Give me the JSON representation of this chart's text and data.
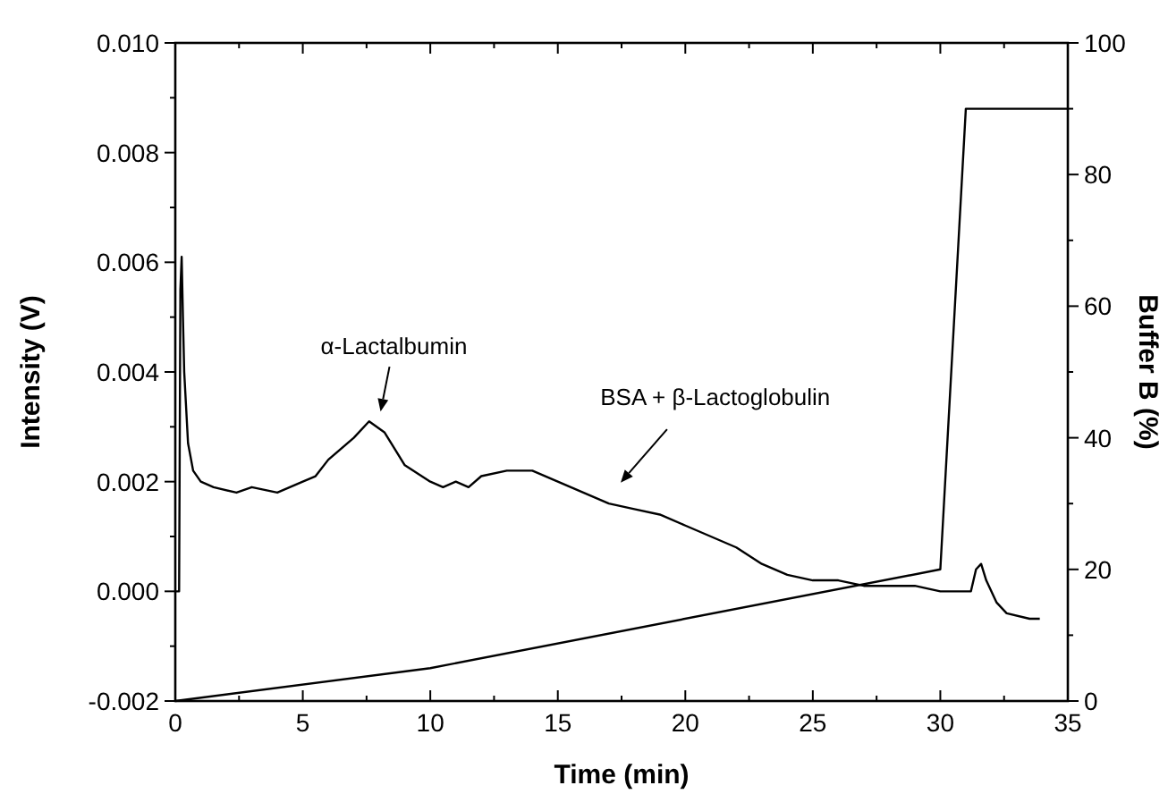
{
  "chart_data": {
    "type": "line",
    "xlabel": "Time (min)",
    "ylabel": "Intensity (V)",
    "y2label": "Buffer B (%)",
    "xlim": [
      0,
      35
    ],
    "xticks": [
      0,
      5,
      10,
      15,
      20,
      25,
      30,
      35
    ],
    "ylim": [
      -0.002,
      0.01
    ],
    "yticks": [
      {
        "value": -0.002,
        "label": "-0.002"
      },
      {
        "value": 0,
        "label": "0.000"
      },
      {
        "value": 0.002,
        "label": "0.002"
      },
      {
        "value": 0.004,
        "label": "0.004"
      },
      {
        "value": 0.006,
        "label": "0.006"
      },
      {
        "value": 0.008,
        "label": "0.008"
      },
      {
        "value": 0.01,
        "label": "0.010"
      }
    ],
    "y2lim": [
      0,
      100
    ],
    "y2ticks": [
      0,
      20,
      40,
      60,
      80,
      100
    ],
    "grid": false,
    "marker": "none",
    "line_style": "solid",
    "series": [
      {
        "color": "#000000",
        "x": [
          0,
          0.15,
          0.2,
          0.25,
          0.3,
          0.35,
          0.5,
          0.7,
          1,
          1.5,
          2.4,
          3,
          4,
          5,
          5.5,
          6,
          7,
          7.6,
          8.2,
          9,
          10,
          10.5,
          11,
          11.5,
          12,
          13,
          14,
          15,
          16,
          17,
          18,
          19,
          20,
          21,
          22,
          23,
          24,
          25,
          26,
          27,
          28,
          29,
          30,
          31.2,
          31.4,
          31.6,
          31.8,
          32.2,
          32.6,
          33.5,
          33.9
        ],
        "values": [
          0,
          0,
          0.0055,
          0.0061,
          0.005,
          0.004,
          0.0027,
          0.0022,
          0.002,
          0.0019,
          0.0018,
          0.0019,
          0.0018,
          0.002,
          0.0021,
          0.0024,
          0.0028,
          0.0031,
          0.0029,
          0.0023,
          0.002,
          0.0019,
          0.002,
          0.0019,
          0.0021,
          0.0022,
          0.0022,
          0.002,
          0.0018,
          0.0016,
          0.0015,
          0.0014,
          0.0012,
          0.001,
          0.0008,
          0.0005,
          0.0003,
          0.0002,
          0.0002,
          0.0001,
          0.0001,
          0.0001,
          0,
          0,
          0.0004,
          0.0005,
          0.0002,
          -0.0002,
          -0.0004,
          -0.0005,
          -0.0005
        ]
      },
      {
        "color": "#000000",
        "axis": "y2",
        "x": [
          0,
          10,
          30,
          31,
          35
        ],
        "values": [
          0,
          5,
          20,
          90,
          90
        ]
      }
    ],
    "annotations": [
      "α-Lactalbumin",
      "BSA + β-Lactoglobulin"
    ]
  }
}
